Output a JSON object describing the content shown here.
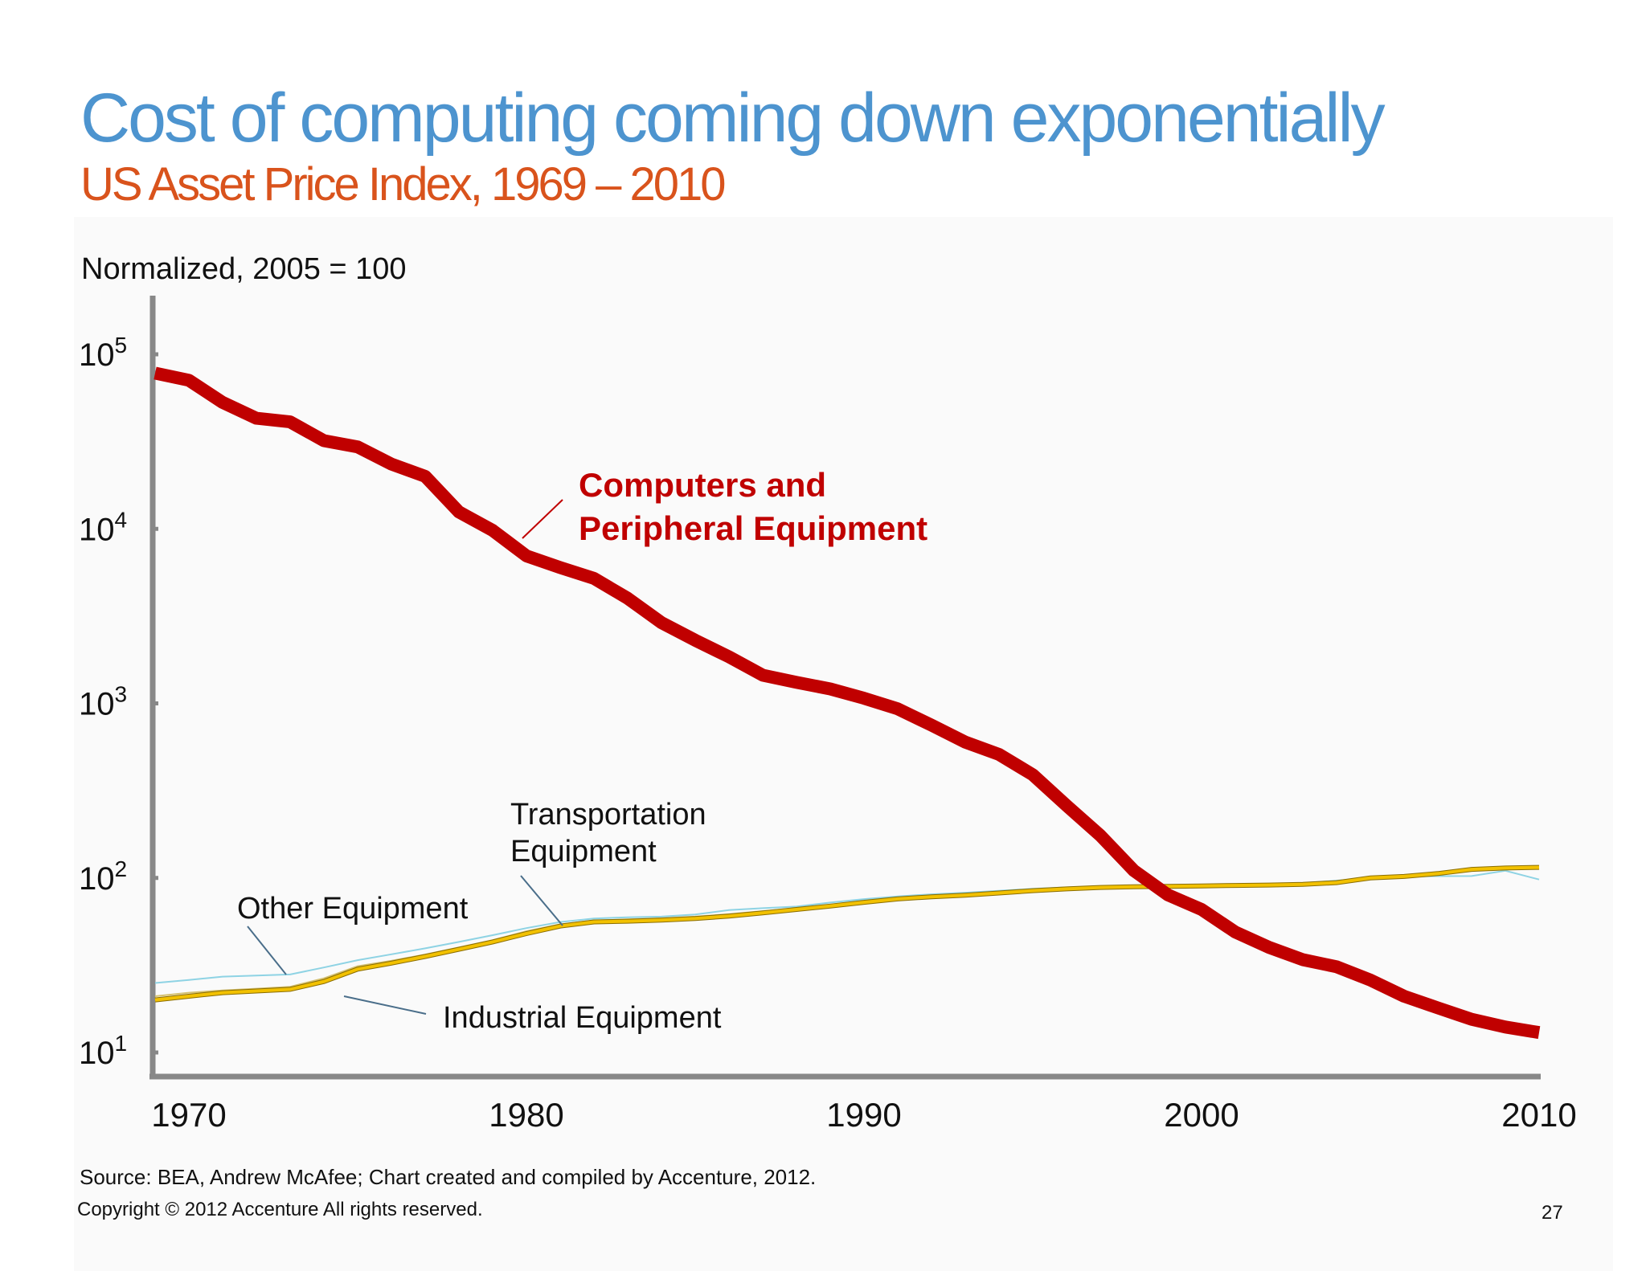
{
  "slide": {
    "title": "Cost of computing coming down exponentially",
    "subtitle": "US Asset Price Index, 1969 – 2010",
    "unit_label": "Normalized, 2005 = 100",
    "source": "Source: BEA, Andrew McAfee; Chart created and compiled by Accenture, 2012.",
    "copyright": "Copyright © 2012 Accenture  All rights reserved.",
    "page_number": "27"
  },
  "colors": {
    "title": "#4d94cf",
    "subtitle": "#d9531c",
    "computers": "#c00000",
    "industrial": "#f2c100",
    "industrial_edge": "#8a6d00",
    "other": "#8ed3e4",
    "transportation": "#d4c070",
    "axis": "#888888"
  },
  "chart_data": {
    "type": "line",
    "title": "US Asset Price Index, 1969 – 2010",
    "ylabel": "Normalized, 2005 = 100",
    "xlabel": "",
    "y_scale": "log",
    "xlim": [
      1969,
      2010
    ],
    "ylim": [
      10,
      150000
    ],
    "x_ticks": [
      1970,
      1980,
      1990,
      2000,
      2010
    ],
    "y_ticks": [
      {
        "value": 10,
        "base": "10",
        "exp": "1"
      },
      {
        "value": 100,
        "base": "10",
        "exp": "2"
      },
      {
        "value": 1000,
        "base": "10",
        "exp": "3"
      },
      {
        "value": 10000,
        "base": "10",
        "exp": "4"
      },
      {
        "value": 100000,
        "base": "10",
        "exp": "5"
      }
    ],
    "x": [
      1969,
      1970,
      1971,
      1972,
      1973,
      1974,
      1975,
      1976,
      1977,
      1978,
      1979,
      1980,
      1981,
      1982,
      1983,
      1984,
      1985,
      1986,
      1987,
      1988,
      1989,
      1990,
      1991,
      1992,
      1993,
      1994,
      1995,
      1996,
      1997,
      1998,
      1999,
      2000,
      2001,
      2002,
      2003,
      2004,
      2005,
      2006,
      2007,
      2008,
      2009,
      2010
    ],
    "series": [
      {
        "name": "Computers and Peripheral Equipment",
        "color_key": "computers",
        "values": [
          78000,
          71000,
          53000,
          43000,
          41000,
          32000,
          29500,
          23500,
          20000,
          12500,
          9800,
          7000,
          6000,
          5200,
          4000,
          2900,
          2300,
          1850,
          1450,
          1320,
          1210,
          1070,
          930,
          750,
          600,
          510,
          390,
          260,
          175,
          110,
          80,
          66,
          49,
          40,
          34,
          31,
          26,
          21,
          18,
          15.5,
          14,
          13
        ]
      },
      {
        "name": "Industrial Equipment",
        "color_key": "industrial",
        "values": [
          20,
          21,
          22,
          22.5,
          23,
          25.5,
          30,
          32.5,
          35.5,
          39,
          43,
          48,
          53,
          56,
          56.5,
          57.3,
          58.5,
          60.5,
          63,
          66,
          69,
          72.5,
          75.8,
          78,
          79.6,
          82,
          84.5,
          86.5,
          88.2,
          89,
          89.5,
          90,
          90.6,
          91,
          91.8,
          94,
          100,
          102,
          106,
          112,
          114,
          115
        ]
      },
      {
        "name": "Other Equipment",
        "color_key": "other",
        "values": [
          25,
          26,
          27.2,
          27.6,
          28,
          30.7,
          33.8,
          36.5,
          39.5,
          43,
          47,
          51.6,
          55.9,
          58.5,
          59.5,
          60,
          61.7,
          65.5,
          67.1,
          68.5,
          72.3,
          75.6,
          78.4,
          80.6,
          82.3,
          84.4,
          86.6,
          88.3,
          89.3,
          89.5,
          90,
          91,
          91.6,
          92.3,
          93.5,
          96.5,
          100,
          101.8,
          102.4,
          102.5,
          110,
          98
        ]
      },
      {
        "name": "Transportation Equipment",
        "color_key": "transportation",
        "values": [
          21,
          22,
          22.7,
          23.2,
          23.8,
          26.6,
          31.2,
          33.5,
          36.4,
          40,
          44,
          49.5,
          54.2,
          57,
          57.9,
          58.8,
          60,
          62,
          64.6,
          67,
          70,
          73.4,
          76.5,
          78.7,
          80.5,
          82.8,
          85,
          86.8,
          88.3,
          89,
          89.5,
          90.2,
          90.8,
          91.2,
          92.1,
          95,
          100,
          103.4,
          106.5,
          111.5,
          113.5,
          114.5
        ]
      }
    ],
    "annotations": [
      {
        "label": "Computers and\nPeripheral Equipment",
        "series": "Computers and Peripheral Equipment"
      },
      {
        "label": "Transportation\nEquipment",
        "series": "Transportation Equipment"
      },
      {
        "label": "Other Equipment",
        "series": "Other Equipment"
      },
      {
        "label": "Industrial Equipment",
        "series": "Industrial Equipment"
      }
    ]
  }
}
